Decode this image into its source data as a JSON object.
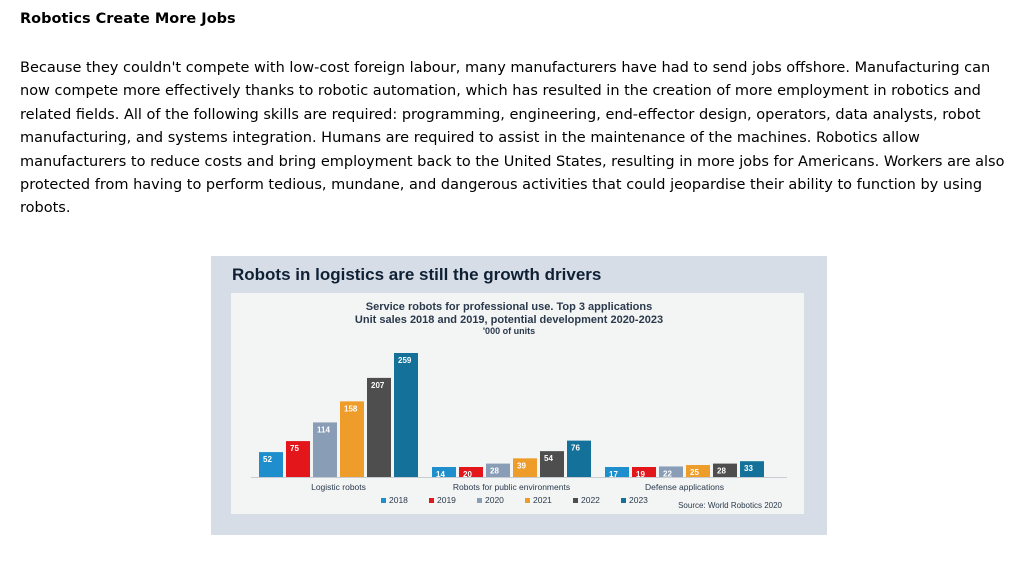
{
  "article": {
    "heading": "Robotics Create More Jobs",
    "paragraph": "Because they couldn't compete with low-cost foreign labour, many manufacturers have had to send jobs offshore. Manufacturing can now compete more effectively thanks to robotic automation, which has resulted in the creation of more employment in robotics and related fields. All of the following skills are required: programming, engineering, end-effector design, operators, data analysts, robot manufacturing, and systems integration. Humans are required to assist in the maintenance of the machines. Robotics allow manufacturers to reduce costs and bring employment back to the United States, resulting in more jobs for Americans. Workers are also protected from having to perform tedious, mundane, and dangerous activities that could jeopardise their ability to function by using robots."
  },
  "figure": {
    "headline": "Robots in logistics are still the growth drivers",
    "source": "Source: World Robotics 2020"
  },
  "chart_data": {
    "type": "bar",
    "title": "Service robots for professional use. Top 3 applications",
    "subtitle": "Unit sales 2018 and 2019, potential development 2020-2023",
    "unit_note": "'000 of units",
    "categories": [
      "Logistic robots",
      "Robots for public environments",
      "Defense applications"
    ],
    "series": [
      {
        "name": "2018",
        "color": "#1e8fcc",
        "values": [
          52,
          14,
          17
        ]
      },
      {
        "name": "2019",
        "color": "#e3161c",
        "values": [
          75,
          20,
          19
        ]
      },
      {
        "name": "2020",
        "color": "#8a9db6",
        "values": [
          114,
          28,
          22
        ]
      },
      {
        "name": "2021",
        "color": "#ee9c2a",
        "values": [
          158,
          39,
          25
        ]
      },
      {
        "name": "2022",
        "color": "#4e4e4e",
        "values": [
          207,
          54,
          28
        ]
      },
      {
        "name": "2023",
        "color": "#14729a",
        "values": [
          259,
          76,
          33
        ]
      }
    ],
    "ylim": [
      0,
      259
    ],
    "legend_position": "bottom",
    "grid": false
  }
}
